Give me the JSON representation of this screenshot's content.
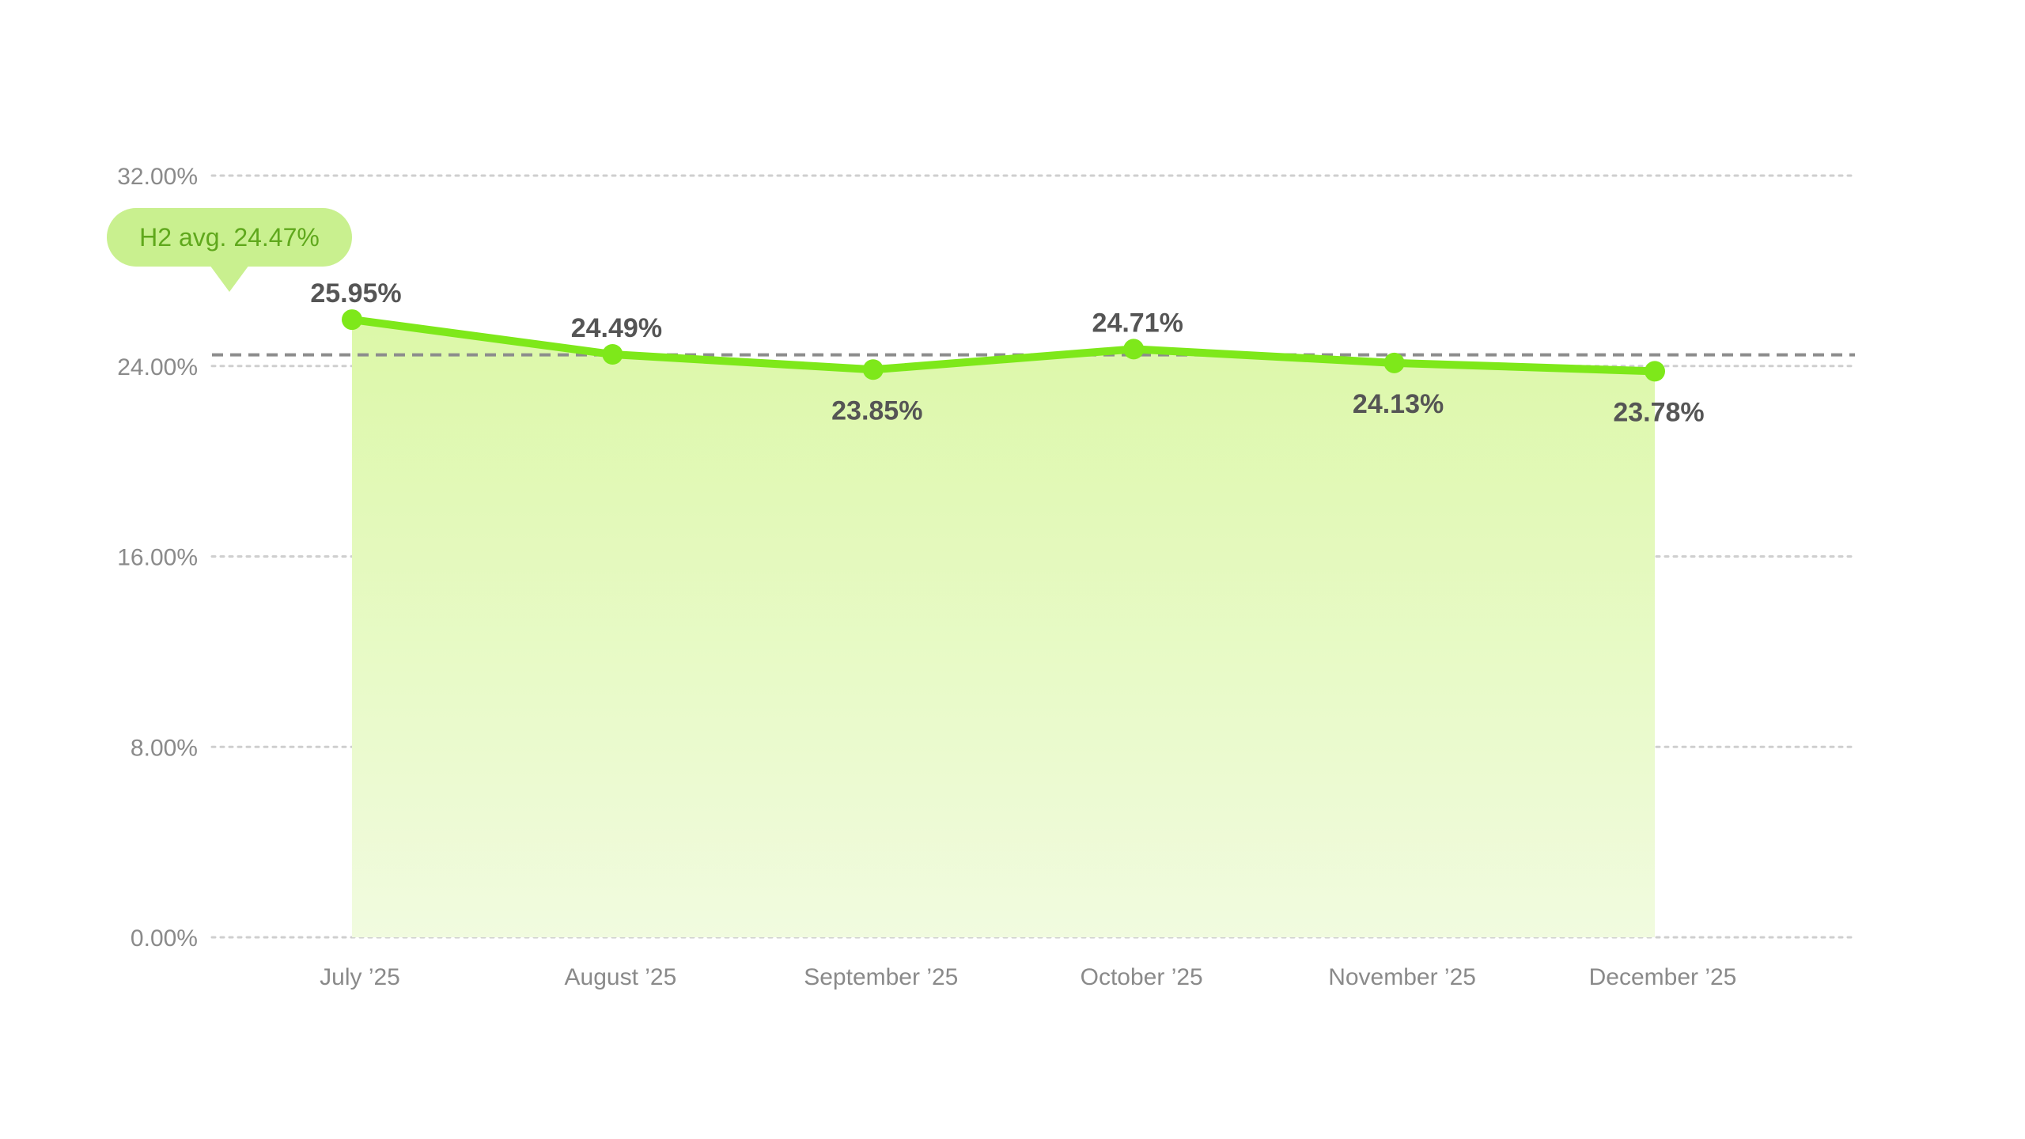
{
  "chart_data": {
    "type": "area",
    "categories": [
      "July ’25",
      "August ’25",
      "September ’25",
      "October ’25",
      "November ’25",
      "December ’25"
    ],
    "series": [
      {
        "values": [
          25.95,
          24.49,
          23.85,
          24.71,
          24.13,
          23.78
        ],
        "data_labels": [
          "25.95%",
          "24.49%",
          "23.85%",
          "24.71%",
          "24.13%",
          "23.78%"
        ]
      }
    ],
    "ylim": [
      0,
      32
    ],
    "y_ticks": [
      0,
      8,
      16,
      24,
      32
    ],
    "y_tick_labels": [
      "0.00%",
      "8.00%",
      "16.00%",
      "24.00%",
      "32.00%"
    ],
    "grid": true,
    "average_line": {
      "value": 24.47,
      "label": "H2 avg. 24.47%",
      "style": "dashed"
    },
    "colors": {
      "line": "#7ee81a",
      "area_top": "#dcf8a8",
      "area_bottom": "#f1fbdf",
      "badge_bg": "#c9f08f",
      "badge_text": "#5fa81c",
      "avg_line": "#8c8c8c",
      "grid": "#cfcfcf"
    }
  }
}
